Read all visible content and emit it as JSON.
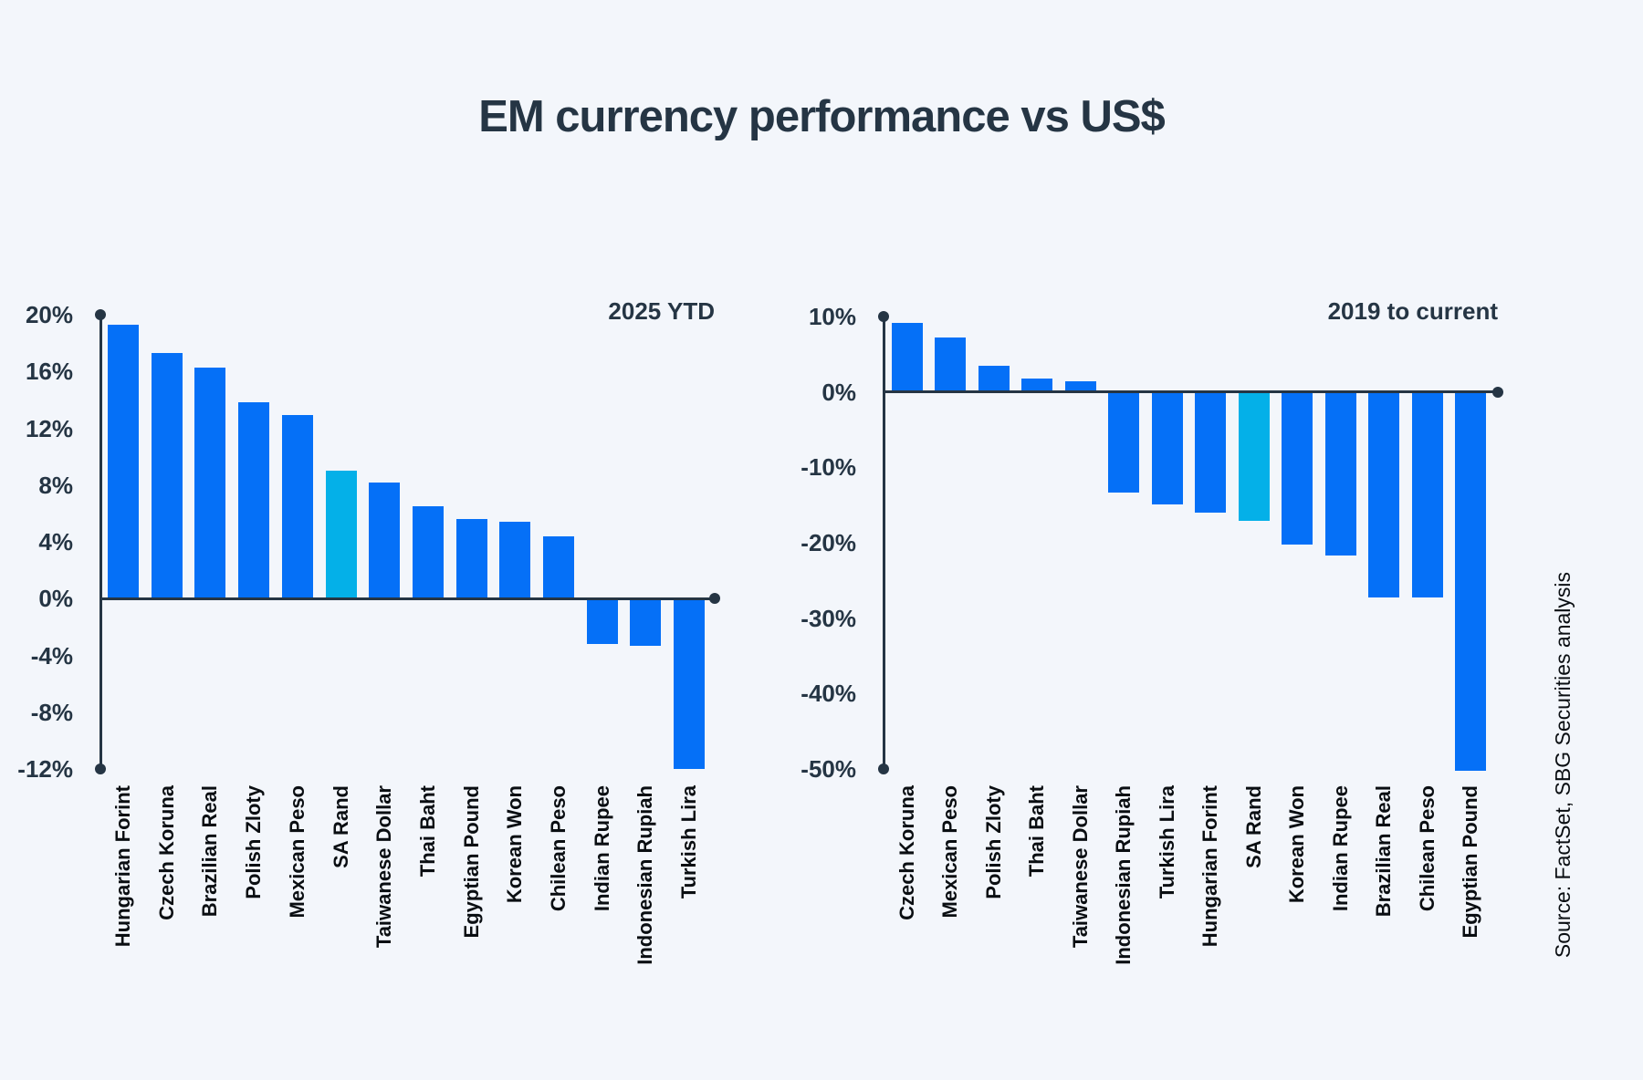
{
  "page": {
    "title": "EM currency performance vs US$",
    "source_note": "Source: FactSet, SBG Securities analysis",
    "colors": {
      "background": "#f3f6fb",
      "bar_blue": "#0570f7",
      "bar_cyan": "#04b0e8",
      "axis": "#253544",
      "tick_text": "#253544",
      "category_text": "#0a0e12"
    }
  },
  "chart_data": [
    {
      "type": "bar",
      "title": "2025 YTD",
      "categories": [
        "Hungarian Forint",
        "Czech Koruna",
        "Brazilian Real",
        "Polish Zloty",
        "Mexican Peso",
        "SA Rand",
        "Taiwanese Dollar",
        "Thai Baht",
        "Egyptian Pound",
        "Korean Won",
        "Chilean Peso",
        "Indian Rupee",
        "Indonesian Rupiah",
        "Turkish Lira"
      ],
      "values": [
        19.3,
        17.3,
        16.3,
        13.8,
        12.9,
        9.0,
        8.2,
        6.5,
        5.6,
        5.4,
        4.4,
        -3.2,
        -3.3,
        -12.0
      ],
      "unit": "%",
      "highlight_category": "SA Rand",
      "xlabel": "",
      "ylabel": "",
      "ylim": [
        -12,
        20
      ],
      "ytick_step": 4,
      "ytick_labels": [
        "20%",
        "16%",
        "12%",
        "8%",
        "4%",
        "0%",
        "-4%",
        "-8%",
        "-12%"
      ],
      "grid": false,
      "legend": "none"
    },
    {
      "type": "bar",
      "title": "2019 to current",
      "categories": [
        "Czech Koruna",
        "Mexican Peso",
        "Polish Zloty",
        "Thai Baht",
        "Taiwanese Dollar",
        "Indonesian Rupiah",
        "Turkish Lira",
        "Hungarian Forint",
        "SA Rand",
        "Korean Won",
        "Indian Rupee",
        "Brazilian Real",
        "Chilean Peso",
        "Egyptian Pound"
      ],
      "values": [
        9.2,
        7.2,
        3.5,
        1.8,
        1.4,
        -13.4,
        -14.9,
        -16.0,
        -17.1,
        -20.3,
        -21.7,
        -27.3,
        -27.3,
        -50.2
      ],
      "unit": "%",
      "highlight_category": "SA Rand",
      "xlabel": "",
      "ylabel": "",
      "ylim": [
        -50,
        10
      ],
      "ytick_step": 10,
      "ytick_labels": [
        "10%",
        "0%",
        "-10%",
        "-20%",
        "-30%",
        "-40%",
        "-50%"
      ],
      "grid": false,
      "legend": "none"
    }
  ]
}
